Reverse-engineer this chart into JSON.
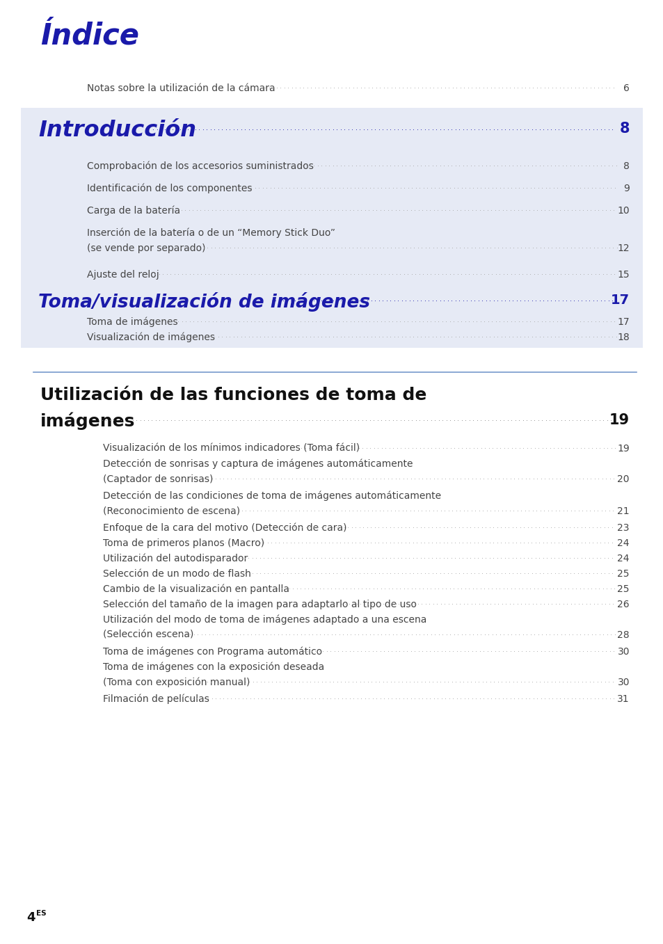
{
  "page_bg": "#ffffff",
  "blue_title_color": "#1a1aaa",
  "black_color": "#111111",
  "gray_text_color": "#444444",
  "box_bg_color": "#e6eaf5",
  "section_line_color": "#6688bb",
  "page_width": 9.54,
  "page_height": 13.57,
  "indice_title": "Índice",
  "indice_entry": "Notas sobre la utilización de la cámara",
  "indice_page": "6",
  "intro_title": "Introducción",
  "intro_page": "8",
  "intro_entries": [
    [
      "Comprobación de los accesorios suministrados",
      "8"
    ],
    [
      "Identificación de los componentes",
      "9"
    ],
    [
      "Carga de la batería",
      "10"
    ],
    [
      "Inserción de la batería o de un “Memory Stick Duo”\n(se vende por separado)",
      "12"
    ],
    [
      "Ajuste del reloj",
      "15"
    ]
  ],
  "toma_title": "Toma/visualización de imágenes",
  "toma_page": "17",
  "toma_entries": [
    [
      "Toma de imágenes",
      "17"
    ],
    [
      "Visualización de imágenes",
      "18"
    ]
  ],
  "util_title_line1": "Utilización de las funciones de toma de",
  "util_title_line2": "imágenes",
  "util_page": "19",
  "util_entries": [
    [
      "Visualización de los mínimos indicadores (Toma fácil)",
      "19"
    ],
    [
      "Detección de sonrisas y captura de imágenes automáticamente\n(Captador de sonrisas)",
      "20"
    ],
    [
      "Detección de las condiciones de toma de imágenes automáticamente\n(Reconocimiento de escena)",
      "21"
    ],
    [
      "Enfoque de la cara del motivo (Detección de cara)",
      "23"
    ],
    [
      "Toma de primeros planos (Macro)",
      "24"
    ],
    [
      "Utilización del autodisparador",
      "24"
    ],
    [
      "Selección de un modo de flash",
      "25"
    ],
    [
      "Cambio de la visualización en pantalla",
      "25"
    ],
    [
      "Selección del tamaño de la imagen para adaptarlo al tipo de uso",
      "26"
    ],
    [
      "Utilización del modo de toma de imágenes adaptado a una escena\n(Selección escena)",
      "28"
    ],
    [
      "Toma de imágenes con Programa automático",
      "30"
    ],
    [
      "Toma de imágenes con la exposición deseada\n(Toma con exposición manual)",
      "30"
    ],
    [
      "Filmación de películas",
      "31"
    ]
  ],
  "footer_text": "4",
  "footer_superscript": "ES"
}
